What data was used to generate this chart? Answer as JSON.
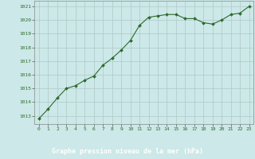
{
  "x": [
    0,
    1,
    2,
    3,
    4,
    5,
    6,
    7,
    8,
    9,
    10,
    11,
    12,
    13,
    14,
    15,
    16,
    17,
    18,
    19,
    20,
    21,
    22,
    23
  ],
  "y": [
    1012.8,
    1013.5,
    1014.3,
    1015.0,
    1015.2,
    1015.6,
    1015.9,
    1016.7,
    1017.2,
    1017.8,
    1018.5,
    1019.6,
    1020.2,
    1020.3,
    1020.4,
    1020.4,
    1020.1,
    1020.1,
    1019.8,
    1019.7,
    1020.0,
    1020.4,
    1020.5,
    1021.0
  ],
  "line_color": "#2d6a2d",
  "marker_color": "#2d6a2d",
  "bg_color": "#cce8e8",
  "plot_bg_color": "#cce8e8",
  "grid_color": "#b0c8c8",
  "xlabel": "Graphe pression niveau de la mer (hPa)",
  "xlabel_color": "#2d6a2d",
  "tick_color": "#2d6a2d",
  "ylabel_ticks": [
    1013,
    1014,
    1015,
    1016,
    1017,
    1018,
    1019,
    1020,
    1021
  ],
  "ylim": [
    1012.4,
    1021.4
  ],
  "xlim": [
    -0.5,
    23.5
  ],
  "xticks": [
    0,
    1,
    2,
    3,
    4,
    5,
    6,
    7,
    8,
    9,
    10,
    11,
    12,
    13,
    14,
    15,
    16,
    17,
    18,
    19,
    20,
    21,
    22,
    23
  ],
  "bottom_bar_color": "#2d6a2d",
  "bottom_label_color": "#ffffff",
  "spine_color": "#888888"
}
